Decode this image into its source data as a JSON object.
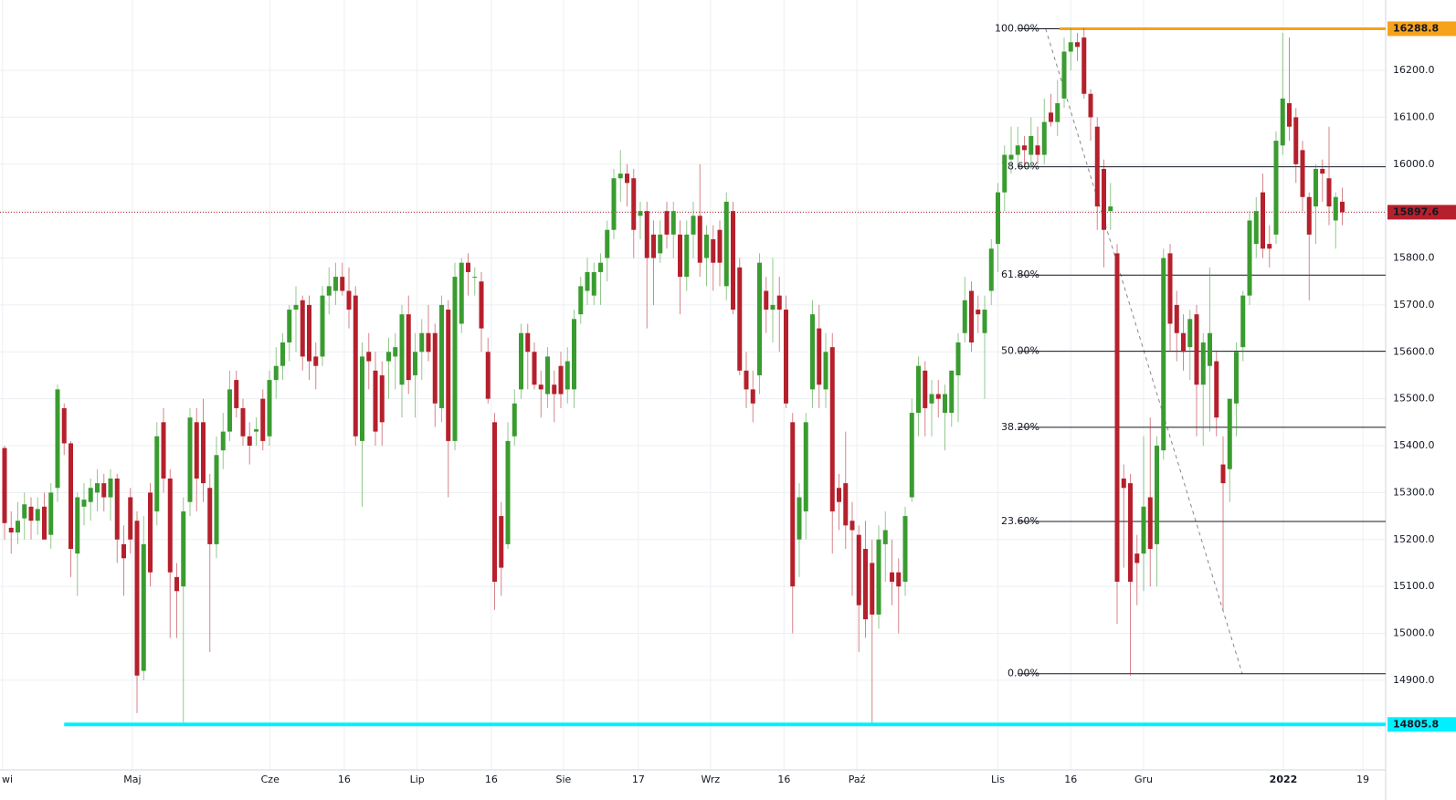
{
  "chart_data": {
    "type": "candlestick",
    "up_color": "#3a9c30",
    "down_color": "#b5202c",
    "grid": true,
    "xlim": [
      -0.69,
      208.55
    ],
    "ylim": [
      14709,
      16350
    ],
    "yticks": [
      {
        "value": 14900,
        "label": "14900.0"
      },
      {
        "value": 15000,
        "label": "15000.0"
      },
      {
        "value": 15100,
        "label": "15100.0"
      },
      {
        "value": 15200,
        "label": "15200.0"
      },
      {
        "value": 15300,
        "label": "15300.0"
      },
      {
        "value": 15400,
        "label": "15400.0"
      },
      {
        "value": 15500,
        "label": "15500.0"
      },
      {
        "value": 15600,
        "label": "15600.0"
      },
      {
        "value": 15700,
        "label": "15700.0"
      },
      {
        "value": 15800,
        "label": "15800.0"
      },
      {
        "value": 15900,
        "label": "15900.0"
      },
      {
        "value": 16000,
        "label": "16000.0"
      },
      {
        "value": 16100,
        "label": "16100.0"
      },
      {
        "value": 16200,
        "label": "16200.0"
      }
    ],
    "xticks": [
      {
        "value": -0.3,
        "label": "wi"
      },
      {
        "value": 19.3,
        "label": "Maj"
      },
      {
        "value": 40.1,
        "label": "Cze"
      },
      {
        "value": 51.3,
        "label": "16"
      },
      {
        "value": 62.3,
        "label": "Lip"
      },
      {
        "value": 73.5,
        "label": "16"
      },
      {
        "value": 84.4,
        "label": "Sie"
      },
      {
        "value": 95.7,
        "label": "17"
      },
      {
        "value": 106.6,
        "label": "Wrz"
      },
      {
        "value": 117.7,
        "label": "16"
      },
      {
        "value": 128.7,
        "label": "Paź"
      },
      {
        "value": 150,
        "label": "Lis"
      },
      {
        "value": 161,
        "label": "16"
      },
      {
        "value": 172,
        "label": "Gru"
      },
      {
        "value": 193.1,
        "label": "2022"
      },
      {
        "value": 205.1,
        "label": "19"
      }
    ],
    "lines": [
      {
        "value": 16288.8,
        "label": "16288.8",
        "color": "#f7a21b"
      },
      {
        "value": 15897.6,
        "label": "15897.6",
        "color": "#b5202c"
      },
      {
        "value": 14805.8,
        "label": "14805.8",
        "color": "#00f0ff"
      }
    ],
    "fib": {
      "high": 16288.8,
      "low": 14914,
      "levels": [
        {
          "value": 100,
          "label": "100.00%"
        },
        {
          "value": 78.6,
          "label": "78.60%"
        },
        {
          "value": 61.8,
          "label": "61.80%"
        },
        {
          "value": 50,
          "label": "50.00%"
        },
        {
          "value": 38.2,
          "label": "38.20%"
        },
        {
          "value": 23.6,
          "label": "23.60%"
        },
        {
          "value": 0,
          "label": "0.00%"
        }
      ]
    },
    "ohlc": [
      [
        15395,
        15400,
        15200,
        15235
      ],
      [
        15225,
        15260,
        15170,
        15215
      ],
      [
        15215,
        15280,
        15190,
        15240
      ],
      [
        15245,
        15300,
        15200,
        15275
      ],
      [
        15270,
        15290,
        15200,
        15240
      ],
      [
        15240,
        15290,
        15210,
        15265
      ],
      [
        15270,
        15300,
        15200,
        15200
      ],
      [
        15210,
        15320,
        15180,
        15300
      ],
      [
        15310,
        15530,
        15280,
        15520
      ],
      [
        15480,
        15490,
        15380,
        15405
      ],
      [
        15405,
        15410,
        15120,
        15180
      ],
      [
        15170,
        15300,
        15080,
        15290
      ],
      [
        15270,
        15320,
        15230,
        15285
      ],
      [
        15280,
        15330,
        15240,
        15310
      ],
      [
        15300,
        15350,
        15260,
        15320
      ],
      [
        15320,
        15340,
        15260,
        15290
      ],
      [
        15290,
        15350,
        15240,
        15330
      ],
      [
        15330,
        15340,
        15150,
        15200
      ],
      [
        15190,
        15230,
        15080,
        15160
      ],
      [
        15290,
        15310,
        15170,
        15200
      ],
      [
        15240,
        15260,
        14830,
        14910
      ],
      [
        14920,
        15250,
        14900,
        15190
      ],
      [
        15300,
        15320,
        15100,
        15130
      ],
      [
        15260,
        15450,
        15230,
        15420
      ],
      [
        15450,
        15480,
        15300,
        15330
      ],
      [
        15330,
        15350,
        14990,
        15130
      ],
      [
        15120,
        15150,
        14990,
        15090
      ],
      [
        15100,
        15290,
        14810,
        15260
      ],
      [
        15280,
        15480,
        15250,
        15460
      ],
      [
        15450,
        15480,
        15260,
        15330
      ],
      [
        15450,
        15500,
        15280,
        15320
      ],
      [
        15310,
        15340,
        14960,
        15190
      ],
      [
        15190,
        15420,
        15160,
        15380
      ],
      [
        15390,
        15470,
        15350,
        15430
      ],
      [
        15430,
        15560,
        15410,
        15520
      ],
      [
        15540,
        15560,
        15460,
        15480
      ],
      [
        15480,
        15500,
        15400,
        15420
      ],
      [
        15420,
        15450,
        15360,
        15400
      ],
      [
        15430,
        15460,
        15400,
        15435
      ],
      [
        15500,
        15520,
        15390,
        15410
      ],
      [
        15420,
        15560,
        15400,
        15540
      ],
      [
        15540,
        15610,
        15500,
        15570
      ],
      [
        15570,
        15640,
        15540,
        15620
      ],
      [
        15620,
        15700,
        15580,
        15690
      ],
      [
        15690,
        15740,
        15600,
        15700
      ],
      [
        15710,
        15720,
        15560,
        15590
      ],
      [
        15700,
        15720,
        15540,
        15580
      ],
      [
        15590,
        15620,
        15520,
        15570
      ],
      [
        15590,
        15740,
        15570,
        15720
      ],
      [
        15720,
        15780,
        15680,
        15740
      ],
      [
        15730,
        15790,
        15700,
        15760
      ],
      [
        15760,
        15790,
        15720,
        15730
      ],
      [
        15730,
        15780,
        15650,
        15690
      ],
      [
        15720,
        15740,
        15400,
        15420
      ],
      [
        15410,
        15620,
        15270,
        15590
      ],
      [
        15600,
        15640,
        15520,
        15580
      ],
      [
        15560,
        15600,
        15400,
        15430
      ],
      [
        15550,
        15580,
        15400,
        15450
      ],
      [
        15580,
        15630,
        15500,
        15600
      ],
      [
        15590,
        15640,
        15520,
        15610
      ],
      [
        15530,
        15700,
        15460,
        15680
      ],
      [
        15680,
        15720,
        15510,
        15540
      ],
      [
        15550,
        15640,
        15460,
        15600
      ],
      [
        15600,
        15670,
        15540,
        15640
      ],
      [
        15640,
        15700,
        15580,
        15600
      ],
      [
        15640,
        15660,
        15440,
        15490
      ],
      [
        15480,
        15720,
        15450,
        15700
      ],
      [
        15690,
        15710,
        15290,
        15410
      ],
      [
        15410,
        15790,
        15390,
        15760
      ],
      [
        15660,
        15800,
        15640,
        15790
      ],
      [
        15790,
        15810,
        15720,
        15770
      ],
      [
        15760,
        15780,
        15720,
        15760
      ],
      [
        15750,
        15770,
        15600,
        15650
      ],
      [
        15600,
        15630,
        15490,
        15500
      ],
      [
        15450,
        15470,
        15050,
        15110
      ],
      [
        15250,
        15280,
        15080,
        15140
      ],
      [
        15190,
        15450,
        15180,
        15410
      ],
      [
        15420,
        15520,
        15400,
        15490
      ],
      [
        15520,
        15660,
        15500,
        15640
      ],
      [
        15640,
        15660,
        15520,
        15600
      ],
      [
        15600,
        15620,
        15520,
        15530
      ],
      [
        15530,
        15560,
        15460,
        15520
      ],
      [
        15510,
        15610,
        15480,
        15590
      ],
      [
        15530,
        15560,
        15450,
        15510
      ],
      [
        15570,
        15600,
        15480,
        15510
      ],
      [
        15520,
        15610,
        15490,
        15580
      ],
      [
        15520,
        15690,
        15480,
        15670
      ],
      [
        15680,
        15760,
        15660,
        15740
      ],
      [
        15730,
        15800,
        15700,
        15770
      ],
      [
        15720,
        15790,
        15700,
        15770
      ],
      [
        15770,
        15810,
        15700,
        15790
      ],
      [
        15800,
        15880,
        15750,
        15860
      ],
      [
        15860,
        15990,
        15840,
        15970
      ],
      [
        15970,
        16030,
        15920,
        15980
      ],
      [
        15980,
        16000,
        15910,
        15960
      ],
      [
        15970,
        15990,
        15800,
        15860
      ],
      [
        15890,
        15920,
        15840,
        15900
      ],
      [
        15900,
        15920,
        15650,
        15800
      ],
      [
        15850,
        15880,
        15700,
        15800
      ],
      [
        15810,
        15880,
        15790,
        15850
      ],
      [
        15900,
        15920,
        15820,
        15850
      ],
      [
        15850,
        15920,
        15800,
        15900
      ],
      [
        15850,
        15880,
        15680,
        15760
      ],
      [
        15760,
        15880,
        15730,
        15850
      ],
      [
        15850,
        15920,
        15800,
        15890
      ],
      [
        15890,
        16000,
        15760,
        15790
      ],
      [
        15800,
        15870,
        15740,
        15850
      ],
      [
        15840,
        15870,
        15730,
        15790
      ],
      [
        15860,
        15880,
        15740,
        15790
      ],
      [
        15740,
        15940,
        15710,
        15920
      ],
      [
        15900,
        15920,
        15680,
        15690
      ],
      [
        15780,
        15800,
        15550,
        15560
      ],
      [
        15560,
        15600,
        15480,
        15520
      ],
      [
        15520,
        15560,
        15450,
        15490
      ],
      [
        15550,
        15810,
        15510,
        15790
      ],
      [
        15730,
        15760,
        15640,
        15690
      ],
      [
        15690,
        15800,
        15620,
        15700
      ],
      [
        15720,
        15760,
        15600,
        15690
      ],
      [
        15690,
        15720,
        15480,
        15490
      ],
      [
        15450,
        15470,
        15000,
        15100
      ],
      [
        15200,
        15320,
        15120,
        15290
      ],
      [
        15260,
        15470,
        15200,
        15450
      ],
      [
        15520,
        15710,
        15480,
        15680
      ],
      [
        15650,
        15700,
        15480,
        15530
      ],
      [
        15520,
        15640,
        15480,
        15600
      ],
      [
        15610,
        15640,
        15170,
        15260
      ],
      [
        15310,
        15340,
        15220,
        15280
      ],
      [
        15320,
        15430,
        15180,
        15230
      ],
      [
        15240,
        15280,
        15080,
        15220
      ],
      [
        15210,
        15230,
        14960,
        15060
      ],
      [
        15180,
        15240,
        14990,
        15030
      ],
      [
        15150,
        15200,
        14810,
        15040
      ],
      [
        15040,
        15230,
        15010,
        15200
      ],
      [
        15190,
        15260,
        15110,
        15220
      ],
      [
        15130,
        15200,
        15060,
        15110
      ],
      [
        15130,
        15160,
        15000,
        15100
      ],
      [
        15110,
        15270,
        15080,
        15250
      ],
      [
        15290,
        15500,
        15280,
        15470
      ],
      [
        15470,
        15590,
        15420,
        15570
      ],
      [
        15560,
        15580,
        15420,
        15480
      ],
      [
        15490,
        15540,
        15420,
        15510
      ],
      [
        15510,
        15540,
        15460,
        15500
      ],
      [
        15470,
        15530,
        15390,
        15510
      ],
      [
        15470,
        15560,
        15440,
        15560
      ],
      [
        15550,
        15640,
        15450,
        15620
      ],
      [
        15640,
        15760,
        15620,
        15710
      ],
      [
        15730,
        15750,
        15600,
        15620
      ],
      [
        15690,
        15720,
        15640,
        15680
      ],
      [
        15640,
        15720,
        15500,
        15690
      ],
      [
        15730,
        15840,
        15700,
        15820
      ],
      [
        15830,
        15960,
        15770,
        15940
      ],
      [
        15940,
        16040,
        15900,
        16020
      ],
      [
        16010,
        16080,
        15980,
        16020
      ],
      [
        16020,
        16080,
        16000,
        16040
      ],
      [
        16040,
        16060,
        16000,
        16030
      ],
      [
        16020,
        16100,
        15990,
        16060
      ],
      [
        16040,
        16080,
        16000,
        16020
      ],
      [
        16020,
        16140,
        16000,
        16090
      ],
      [
        16110,
        16150,
        16080,
        16090
      ],
      [
        16090,
        16180,
        16060,
        16130
      ],
      [
        16140,
        16270,
        16120,
        16240
      ],
      [
        16240,
        16290,
        16200,
        16260
      ],
      [
        16260,
        16280,
        16220,
        16250
      ],
      [
        16270,
        16290,
        16140,
        16150
      ],
      [
        16150,
        16160,
        16050,
        16100
      ],
      [
        16080,
        16100,
        15860,
        15910
      ],
      [
        15990,
        16010,
        15780,
        15860
      ],
      [
        15900,
        15960,
        15860,
        15910
      ],
      [
        15810,
        15830,
        15020,
        15110
      ],
      [
        15330,
        15360,
        15140,
        15310
      ],
      [
        15320,
        15340,
        14910,
        15110
      ],
      [
        15170,
        15210,
        15060,
        15150
      ],
      [
        15170,
        15420,
        15090,
        15270
      ],
      [
        15290,
        15460,
        15100,
        15180
      ],
      [
        15190,
        15420,
        15100,
        15400
      ],
      [
        15390,
        15820,
        15370,
        15800
      ],
      [
        15810,
        15830,
        15600,
        15660
      ],
      [
        15700,
        15730,
        15580,
        15640
      ],
      [
        15640,
        15680,
        15560,
        15600
      ],
      [
        15610,
        15690,
        15540,
        15670
      ],
      [
        15680,
        15700,
        15420,
        15530
      ],
      [
        15530,
        15640,
        15400,
        15620
      ],
      [
        15570,
        15780,
        15430,
        15640
      ],
      [
        15580,
        15600,
        15420,
        15460
      ],
      [
        15360,
        15420,
        15050,
        15320
      ],
      [
        15350,
        15500,
        15280,
        15500
      ],
      [
        15490,
        15620,
        15420,
        15600
      ],
      [
        15610,
        15730,
        15580,
        15720
      ],
      [
        15720,
        15900,
        15700,
        15880
      ],
      [
        15830,
        15930,
        15800,
        15900
      ],
      [
        15940,
        15980,
        15800,
        15820
      ],
      [
        15830,
        15870,
        15780,
        15820
      ],
      [
        15850,
        16070,
        15830,
        16050
      ],
      [
        16040,
        16280,
        16020,
        16140
      ],
      [
        16130,
        16270,
        16050,
        16080
      ],
      [
        16100,
        16120,
        15960,
        16000
      ],
      [
        16030,
        16050,
        15900,
        15930
      ],
      [
        15930,
        15940,
        15710,
        15850
      ],
      [
        15910,
        16000,
        15830,
        15990
      ],
      [
        15990,
        16010,
        15920,
        15980
      ],
      [
        15970,
        16080,
        15870,
        15910
      ],
      [
        15880,
        15940,
        15820,
        15930
      ],
      [
        15920,
        15950,
        15870,
        15897.6
      ]
    ]
  }
}
